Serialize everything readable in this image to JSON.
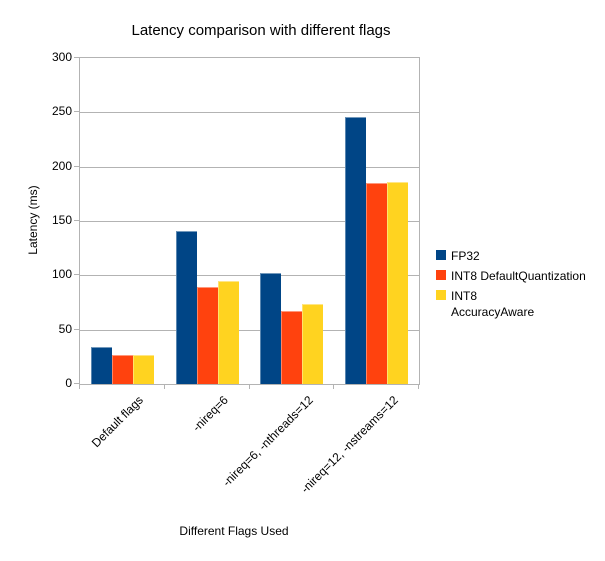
{
  "chart_data": {
    "type": "bar",
    "title": "Latency comparison with different flags",
    "xlabel": "Different Flags Used",
    "ylabel": "Latency (ms)",
    "categories": [
      "Default flags",
      "-nireq=6",
      "-nireq=6, -nthreads=12",
      "-nireq=12, -nstreams=12"
    ],
    "series": [
      {
        "name": "FP32",
        "color": "#004586",
        "values": [
          34,
          141,
          102,
          246
        ]
      },
      {
        "name": "INT8 DefaultQuantization",
        "color": "#FF420E",
        "values": [
          27,
          89,
          67,
          185
        ]
      },
      {
        "name": "INT8\nAccuracyAware",
        "color": "#FFD320",
        "values": [
          27,
          95,
          74,
          186
        ]
      }
    ],
    "ylim": [
      0,
      300
    ],
    "ytick_step": 50,
    "grid": "horizontal",
    "legend_position": "right"
  },
  "colors": {
    "grid": "#b3b3b3",
    "axis": "#b3b3b3",
    "text": "#000000",
    "background": "#ffffff"
  }
}
